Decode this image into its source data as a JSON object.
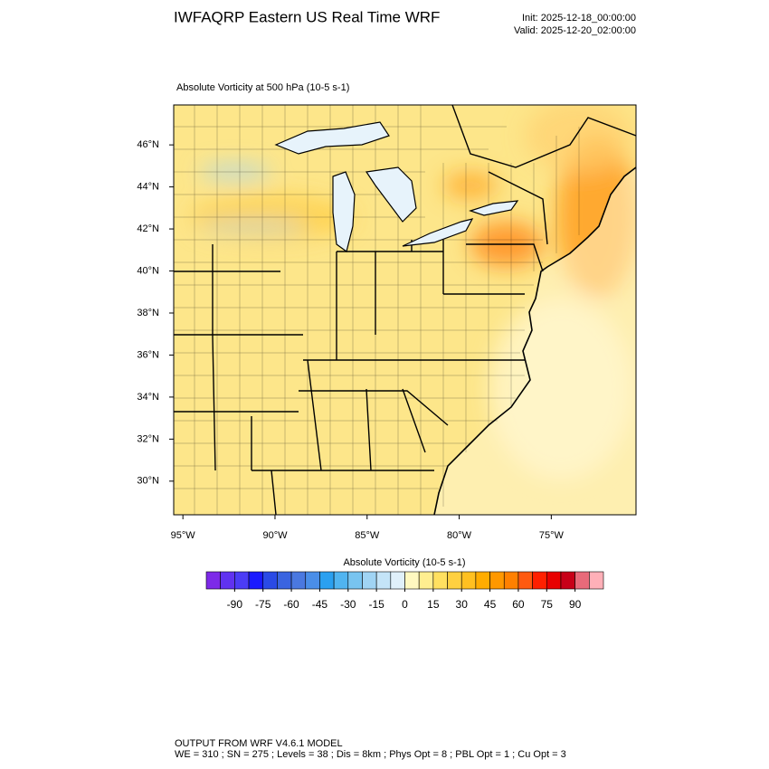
{
  "header": {
    "title": "IWFAQRP Eastern US Real Time WRF",
    "init": "Init: 2025-12-18_00:00:00",
    "valid": "Valid: 2025-12-20_02:00:00"
  },
  "map": {
    "title": "Absolute Vorticity at 500 hPa   (10-5 s-1)",
    "xlim": [
      -95.5,
      -70.4
    ],
    "ylim": [
      28.4,
      47.9
    ],
    "xticks": [
      {
        "value": -95,
        "label": "95°W"
      },
      {
        "value": -90,
        "label": "90°W"
      },
      {
        "value": -85,
        "label": "85°W"
      },
      {
        "value": -80,
        "label": "80°W"
      },
      {
        "value": -75,
        "label": "75°W"
      }
    ],
    "yticks": [
      {
        "value": 30,
        "label": "30°N"
      },
      {
        "value": 32,
        "label": "32°N"
      },
      {
        "value": 34,
        "label": "34°N"
      },
      {
        "value": 36,
        "label": "36°N"
      },
      {
        "value": 38,
        "label": "38°N"
      },
      {
        "value": 40,
        "label": "40°N"
      },
      {
        "value": 42,
        "label": "42°N"
      },
      {
        "value": 44,
        "label": "44°N"
      },
      {
        "value": 46,
        "label": "46°N"
      }
    ]
  },
  "colorbar": {
    "title": "Absolute Vorticity  (10-5 s-1)",
    "lim": [
      -105,
      105
    ],
    "ticks": [
      -90,
      -75,
      -60,
      -45,
      -30,
      -15,
      0,
      15,
      30,
      45,
      60,
      75,
      90
    ],
    "colors": [
      "#7d2ae8",
      "#6032f0",
      "#4b3cf5",
      "#1a1aff",
      "#2a4ae6",
      "#3a64e0",
      "#4a78e0",
      "#4a8ee8",
      "#2aa0f0",
      "#50b4f0",
      "#78c4f0",
      "#a0d4f4",
      "#c4e4f8",
      "#e0f0fa",
      "#fff8c0",
      "#ffee90",
      "#ffe060",
      "#ffd040",
      "#ffc020",
      "#ffac00",
      "#ff9800",
      "#ff8000",
      "#ff5a10",
      "#ff2000",
      "#e80000",
      "#c80018",
      "#e86a7a",
      "#ffb0b8"
    ]
  },
  "footer": {
    "line1": "OUTPUT FROM WRF V4.6.1 MODEL",
    "line2": "WE = 310 ; SN = 275 ; Levels = 38 ; Dis = 8km ; Phys Opt = 8 ; PBL Opt = 1 ; Cu Opt = 3"
  }
}
